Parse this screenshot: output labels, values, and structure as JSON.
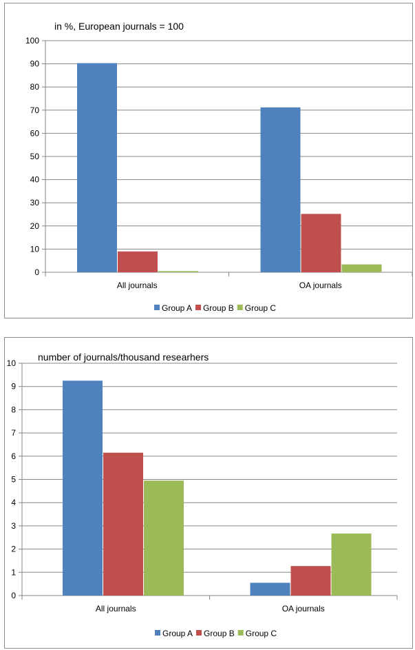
{
  "chart_data": [
    {
      "type": "bar",
      "title": "in %, European journals = 100",
      "categories": [
        "All journals",
        "OA journals"
      ],
      "series": [
        {
          "name": "Group A",
          "color": "#4f81bd",
          "values": [
            90.3,
            71.2
          ]
        },
        {
          "name": "Group B",
          "color": "#c0504d",
          "values": [
            9.0,
            25.2
          ]
        },
        {
          "name": "Group C",
          "color": "#9bbb59",
          "values": [
            0.5,
            3.4
          ]
        }
      ],
      "ylim": [
        0,
        100
      ],
      "yticks": [
        "0",
        "10",
        "20",
        "30",
        "40",
        "50",
        "60",
        "70",
        "80",
        "90",
        "100"
      ],
      "grid": true,
      "legend": "bottom"
    },
    {
      "type": "bar",
      "title": "number of journals/thousand researhers",
      "categories": [
        "All journals",
        "OA journals"
      ],
      "series": [
        {
          "name": "Group A",
          "color": "#4f81bd",
          "values": [
            9.25,
            0.55
          ]
        },
        {
          "name": "Group B",
          "color": "#c0504d",
          "values": [
            6.15,
            1.27
          ]
        },
        {
          "name": "Group C",
          "color": "#9bbb59",
          "values": [
            4.95,
            2.67
          ]
        }
      ],
      "ylim": [
        0,
        10
      ],
      "yticks": [
        "0",
        "1",
        "2",
        "3",
        "4",
        "5",
        "6",
        "7",
        "8",
        "9",
        "10"
      ],
      "grid": true,
      "legend": "bottom"
    }
  ]
}
